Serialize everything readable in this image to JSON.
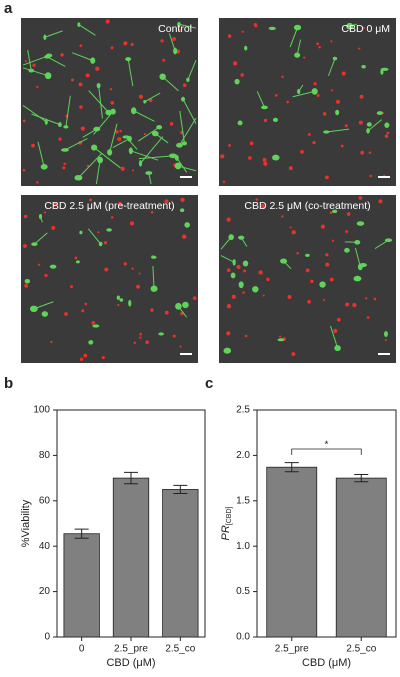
{
  "panel_a": {
    "label": "a",
    "images": [
      {
        "caption": "Control"
      },
      {
        "caption": "CBD 0 μM"
      },
      {
        "caption": "CBD 2.5 μM (pre-treatment)"
      },
      {
        "caption": "CBD 2.5 μM (co-treatment)"
      }
    ]
  },
  "chart_data": [
    {
      "type": "bar",
      "panel_label": "b",
      "ylabel": "%Viability",
      "xlabel": "CBD (μM)",
      "categories": [
        "0",
        "2.5_pre",
        "2.5_co"
      ],
      "values": [
        45.5,
        70,
        65
      ],
      "errors": [
        2,
        2.5,
        1.8
      ],
      "color": "#808080",
      "ylim": [
        0,
        100
      ],
      "yticks": [
        0,
        20,
        40,
        60,
        80,
        100
      ]
    },
    {
      "type": "bar",
      "panel_label": "c",
      "ylabel": "PR",
      "ylabel_subscript": "[CBD]",
      "xlabel": "CBD (μM)",
      "categories": [
        "2.5_pre",
        "2.5_co"
      ],
      "values": [
        1.87,
        1.75
      ],
      "errors": [
        0.05,
        0.04
      ],
      "color": "#808080",
      "ylim": [
        0,
        2.5
      ],
      "yticks": [
        {
          "value": 0,
          "label": "0.0"
        },
        0.5,
        {
          "value": 1,
          "label": "1.0"
        },
        1.5,
        {
          "value": 2,
          "label": "2.0"
        },
        2.5
      ],
      "annotation": "*"
    }
  ]
}
